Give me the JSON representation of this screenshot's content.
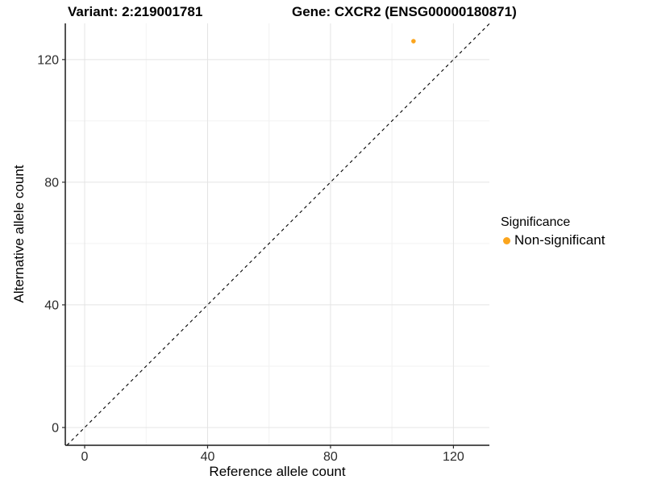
{
  "titles": {
    "variant": "Variant: 2:219001781",
    "gene": "Gene: CXCR2 (ENSG00000180871)"
  },
  "legend": {
    "title": "Significance",
    "position": "right",
    "items": [
      {
        "label": "Non-significant",
        "color": "#FBA51D",
        "marker": "circle"
      }
    ]
  },
  "chart_data": {
    "type": "scatter",
    "title": "Variant: 2:219001781 / Gene: CXCR2 (ENSG00000180871)",
    "xlabel": "Reference allele count",
    "ylabel": "Alternative allele count",
    "xlim": [
      -6.3,
      131.7
    ],
    "ylim": [
      -5.8,
      131.8
    ],
    "xticks": [
      0,
      40,
      80,
      120
    ],
    "yticks": [
      0,
      40,
      80,
      120
    ],
    "minor_ticks": [
      20,
      60,
      100
    ],
    "grid": true,
    "points": [
      {
        "x": 107,
        "y": 126,
        "series": "Non-significant",
        "color": "#FBA51D"
      }
    ],
    "reference_line": {
      "slope": 1,
      "intercept": 0,
      "style": "dashed",
      "color": "#000000"
    },
    "legend_position": "right"
  },
  "style_colors": {
    "point_orange": "#FBA51D",
    "grid_major": "#E4E4E4",
    "grid_minor": "#F2F2F2",
    "axis_line": "#1a1a1a",
    "tick_text": "#2b2b2b"
  }
}
